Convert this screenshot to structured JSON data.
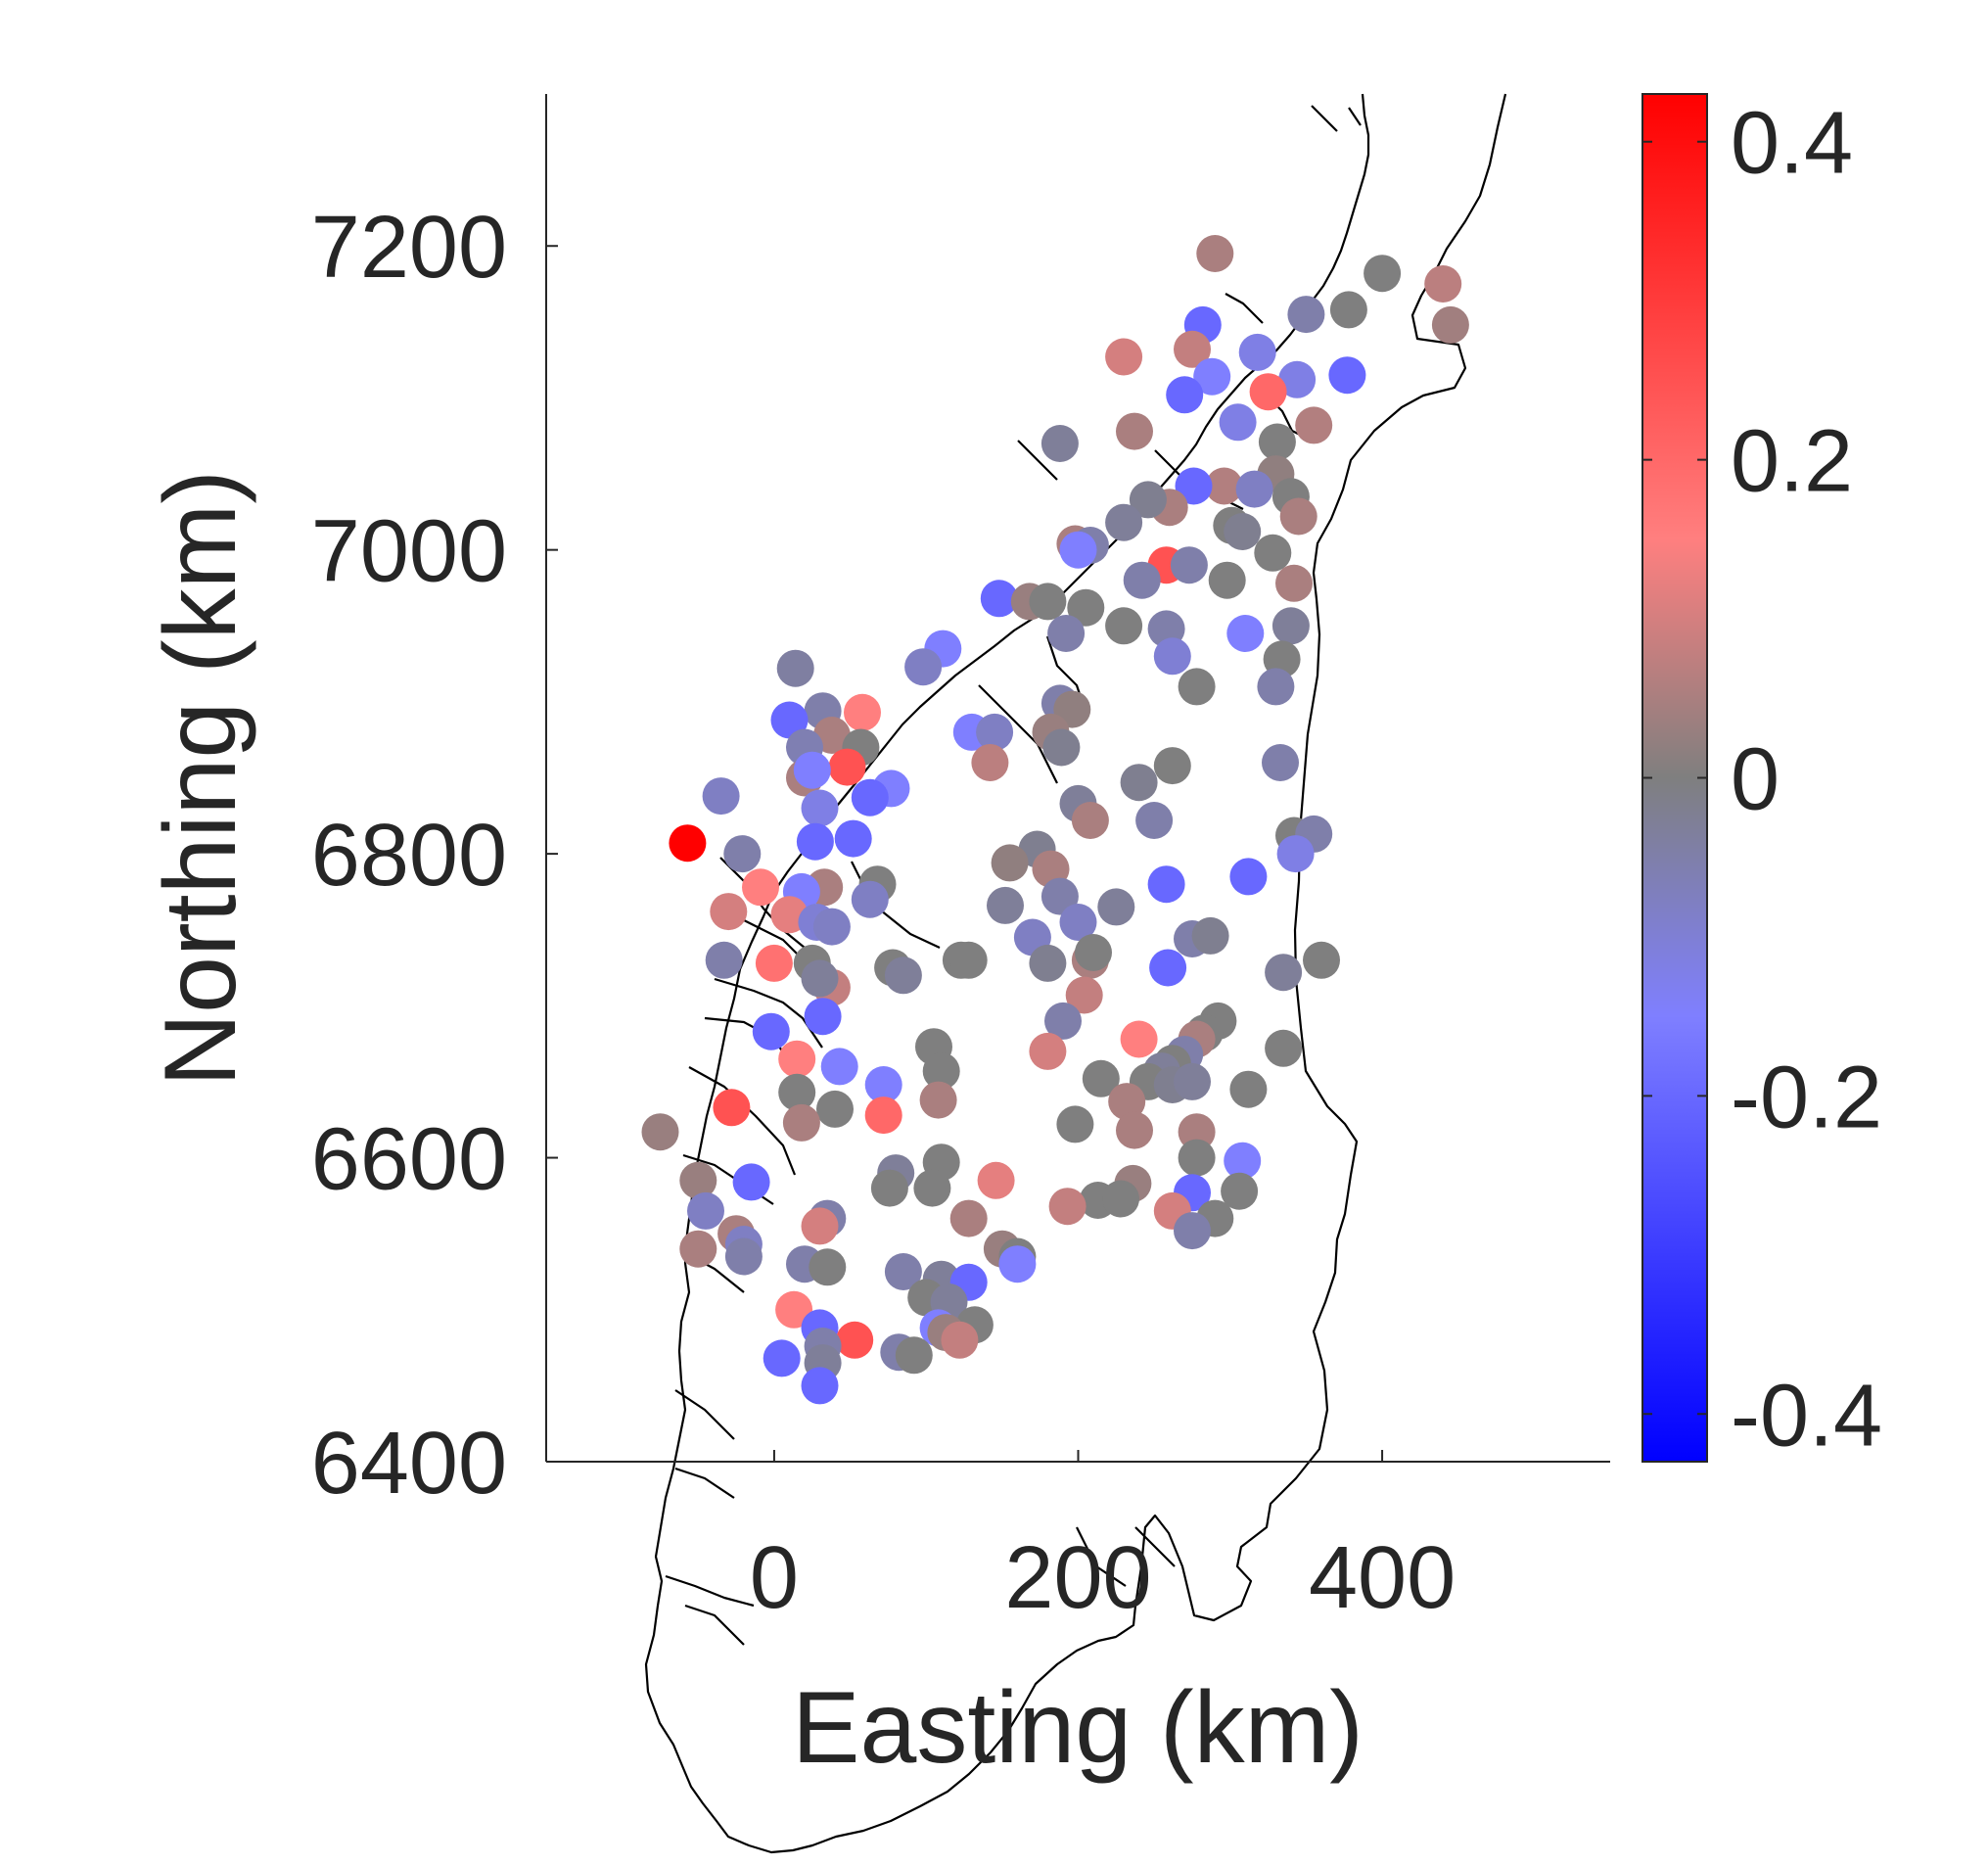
{
  "chart_data": {
    "type": "scatter",
    "xlabel": "Easting (km)",
    "ylabel": "Northing (km)",
    "xlim": [
      -150,
      550
    ],
    "ylim": [
      6400,
      7300
    ],
    "xticks": [
      0,
      200,
      400
    ],
    "yticks": [
      6400,
      6600,
      6800,
      7000,
      7200
    ],
    "colorbar": {
      "range": [
        -0.43,
        0.43
      ],
      "ticks": [
        -0.4,
        -0.2,
        0,
        0.2,
        0.4
      ],
      "tick_labels": [
        "-0.4",
        "-0.2",
        "0",
        "0.2",
        "0.4"
      ],
      "colormap": [
        {
          "v": -0.43,
          "color": "#0000ff"
        },
        {
          "v": -0.15,
          "color": "#7f7fff"
        },
        {
          "v": 0.0,
          "color": "#7f7f7f"
        },
        {
          "v": 0.15,
          "color": "#ff7f7f"
        },
        {
          "v": 0.43,
          "color": "#ff0000"
        }
      ]
    },
    "grid": false,
    "points": [
      [
        290,
        7195,
        0.05
      ],
      [
        400,
        7182,
        0.0
      ],
      [
        440,
        7175,
        0.07
      ],
      [
        445,
        7148,
        0.04
      ],
      [
        378,
        7158,
        0.0
      ],
      [
        350,
        7155,
        -0.05
      ],
      [
        282,
        7148,
        -0.2
      ],
      [
        230,
        7127,
        0.1
      ],
      [
        275,
        7132,
        0.08
      ],
      [
        318,
        7130,
        -0.12
      ],
      [
        344,
        7112,
        -0.12
      ],
      [
        377,
        7115,
        -0.2
      ],
      [
        288,
        7114,
        -0.15
      ],
      [
        270,
        7102,
        -0.2
      ],
      [
        325,
        7104,
        0.2
      ],
      [
        305,
        7084,
        -0.12
      ],
      [
        355,
        7082,
        0.06
      ],
      [
        237,
        7078,
        0.05
      ],
      [
        188,
        7070,
        -0.03
      ],
      [
        331,
        7071,
        0.0
      ],
      [
        330,
        7050,
        0.02
      ],
      [
        296,
        7042,
        0.06
      ],
      [
        276,
        7042,
        -0.2
      ],
      [
        316,
        7040,
        -0.08
      ],
      [
        340,
        7035,
        0.0
      ],
      [
        260,
        7028,
        0.05
      ],
      [
        246,
        7033,
        -0.02
      ],
      [
        345,
        7022,
        0.05
      ],
      [
        230,
        7018,
        -0.03
      ],
      [
        301,
        7016,
        0.0
      ],
      [
        308,
        7012,
        -0.02
      ],
      [
        198,
        7004,
        0.05
      ],
      [
        208,
        7003,
        -0.05
      ],
      [
        200,
        7000,
        -0.15
      ],
      [
        328,
        6998,
        0.0
      ],
      [
        258,
        6990,
        0.25
      ],
      [
        273,
        6990,
        -0.05
      ],
      [
        242,
        6980,
        -0.05
      ],
      [
        298,
        6980,
        0.0
      ],
      [
        342,
        6978,
        0.05
      ],
      [
        148,
        6968,
        -0.2
      ],
      [
        168,
        6966,
        0.03
      ],
      [
        180,
        6966,
        0.0
      ],
      [
        205,
        6962,
        0.0
      ],
      [
        230,
        6950,
        0.0
      ],
      [
        340,
        6950,
        -0.03
      ],
      [
        258,
        6948,
        -0.05
      ],
      [
        192,
        6945,
        -0.05
      ],
      [
        310,
        6945,
        -0.15
      ],
      [
        111,
        6935,
        -0.15
      ],
      [
        98,
        6923,
        -0.08
      ],
      [
        14,
        6922,
        -0.04
      ],
      [
        262,
        6930,
        -0.1
      ],
      [
        334,
        6928,
        0.0
      ],
      [
        278,
        6910,
        0.0
      ],
      [
        330,
        6910,
        -0.05
      ],
      [
        188,
        6899,
        -0.05
      ],
      [
        196,
        6895,
        0.02
      ],
      [
        32,
        6894,
        -0.05
      ],
      [
        58,
        6893,
        0.15
      ],
      [
        10,
        6888,
        -0.2
      ],
      [
        130,
        6880,
        -0.15
      ],
      [
        145,
        6880,
        -0.08
      ],
      [
        182,
        6880,
        0.03
      ],
      [
        38,
        6878,
        0.05
      ],
      [
        20,
        6870,
        -0.06
      ],
      [
        57,
        6870,
        0.0
      ],
      [
        189,
        6870,
        -0.02
      ],
      [
        262,
        6858,
        0.0
      ],
      [
        333,
        6860,
        -0.05
      ],
      [
        142,
        6860,
        0.07
      ],
      [
        48,
        6857,
        0.25
      ],
      [
        20,
        6850,
        0.05
      ],
      [
        25,
        6855,
        -0.15
      ],
      [
        240,
        6847,
        -0.02
      ],
      [
        77,
        6843,
        -0.15
      ],
      [
        63,
        6837,
        -0.2
      ],
      [
        -35,
        6838,
        -0.08
      ],
      [
        200,
        6833,
        -0.03
      ],
      [
        30,
        6830,
        -0.12
      ],
      [
        208,
        6822,
        0.05
      ],
      [
        250,
        6822,
        -0.05
      ],
      [
        342,
        6812,
        0.0
      ],
      [
        355,
        6813,
        -0.05
      ],
      [
        -57,
        6807,
        0.43
      ],
      [
        27,
        6808,
        -0.2
      ],
      [
        52,
        6810,
        -0.2
      ],
      [
        343,
        6800,
        -0.12
      ],
      [
        -21,
        6800,
        -0.05
      ],
      [
        173,
        6803,
        -0.02
      ],
      [
        155,
        6794,
        0.02
      ],
      [
        182,
        6790,
        0.05
      ],
      [
        258,
        6780,
        -0.2
      ],
      [
        312,
        6785,
        -0.2
      ],
      [
        -9,
        6778,
        0.15
      ],
      [
        33,
        6778,
        0.05
      ],
      [
        68,
        6780,
        0.0
      ],
      [
        18,
        6775,
        -0.15
      ],
      [
        188,
        6772,
        -0.05
      ],
      [
        63,
        6770,
        -0.08
      ],
      [
        152,
        6766,
        -0.03
      ],
      [
        225,
        6765,
        -0.03
      ],
      [
        -30,
        6762,
        0.1
      ],
      [
        10,
        6760,
        0.12
      ],
      [
        28,
        6755,
        -0.1
      ],
      [
        38,
        6752,
        -0.08
      ],
      [
        200,
        6755,
        -0.08
      ],
      [
        170,
        6745,
        -0.08
      ],
      [
        275,
        6744,
        -0.05
      ],
      [
        287,
        6746,
        -0.02
      ],
      [
        -33,
        6730,
        -0.05
      ],
      [
        123,
        6730,
        0.0
      ],
      [
        128,
        6730,
        0.0
      ],
      [
        180,
        6728,
        -0.02
      ],
      [
        208,
        6730,
        0.05
      ],
      [
        210,
        6735,
        0.0
      ],
      [
        360,
        6730,
        0.0
      ],
      [
        0,
        6728,
        0.18
      ],
      [
        25,
        6728,
        0.0
      ],
      [
        78,
        6725,
        0.0
      ],
      [
        259,
        6725,
        -0.2
      ],
      [
        335,
        6722,
        -0.03
      ],
      [
        85,
        6720,
        -0.03
      ],
      [
        38,
        6712,
        0.08
      ],
      [
        30,
        6718,
        -0.03
      ],
      [
        204,
        6707,
        0.08
      ],
      [
        32,
        6693,
        -0.2
      ],
      [
        190,
        6690,
        -0.05
      ],
      [
        292,
        6690,
        0.0
      ],
      [
        -2,
        6683,
        -0.2
      ],
      [
        283,
        6682,
        0.0
      ],
      [
        240,
        6678,
        0.15
      ],
      [
        278,
        6678,
        0.05
      ],
      [
        105,
        6673,
        0.0
      ],
      [
        180,
        6670,
        0.1
      ],
      [
        335,
        6672,
        0.0
      ],
      [
        270,
        6668,
        -0.05
      ],
      [
        262,
        6662,
        0.0
      ],
      [
        255,
        6657,
        -0.03
      ],
      [
        15,
        6665,
        0.15
      ],
      [
        43,
        6660,
        -0.15
      ],
      [
        110,
        6657,
        0.0
      ],
      [
        215,
        6652,
        0.0
      ],
      [
        72,
        6648,
        -0.15
      ],
      [
        246,
        6650,
        0.0
      ],
      [
        262,
        6648,
        -0.02
      ],
      [
        275,
        6650,
        -0.03
      ],
      [
        312,
        6645,
        0.0
      ],
      [
        15,
        6643,
        0.0
      ],
      [
        108,
        6638,
        0.05
      ],
      [
        232,
        6637,
        0.05
      ],
      [
        -28,
        6633,
        0.25
      ],
      [
        40,
        6632,
        0.0
      ],
      [
        72,
        6628,
        0.2
      ],
      [
        18,
        6623,
        0.05
      ],
      [
        237,
        6618,
        0.05
      ],
      [
        278,
        6617,
        0.05
      ],
      [
        198,
        6622,
        0.0
      ],
      [
        -75,
        6617,
        0.03
      ],
      [
        278,
        6600,
        0.0
      ],
      [
        308,
        6598,
        -0.15
      ],
      [
        110,
        6597,
        0.0
      ],
      [
        80,
        6590,
        -0.03
      ],
      [
        146,
        6585,
        0.12
      ],
      [
        236,
        6583,
        0.03
      ],
      [
        -50,
        6585,
        0.03
      ],
      [
        -15,
        6584,
        -0.2
      ],
      [
        76,
        6580,
        0.0
      ],
      [
        104,
        6580,
        0.0
      ],
      [
        275,
        6577,
        -0.2
      ],
      [
        306,
        6578,
        0.0
      ],
      [
        213,
        6572,
        0.0
      ],
      [
        228,
        6573,
        0.0
      ],
      [
        193,
        6568,
        0.08
      ],
      [
        -45,
        6565,
        -0.08
      ],
      [
        262,
        6565,
        0.1
      ],
      [
        35,
        6560,
        -0.05
      ],
      [
        128,
        6560,
        0.05
      ],
      [
        290,
        6560,
        0.0
      ],
      [
        30,
        6555,
        0.1
      ],
      [
        -25,
        6550,
        0.05
      ],
      [
        -20,
        6543,
        -0.08
      ],
      [
        275,
        6552,
        -0.05
      ],
      [
        -50,
        6540,
        0.05
      ],
      [
        -20,
        6535,
        -0.05
      ],
      [
        150,
        6540,
        0.03
      ],
      [
        160,
        6535,
        0.0
      ],
      [
        160,
        6530,
        -0.15
      ],
      [
        20,
        6530,
        -0.05
      ],
      [
        35,
        6528,
        0.0
      ],
      [
        85,
        6525,
        -0.05
      ],
      [
        110,
        6520,
        -0.03
      ],
      [
        128,
        6518,
        -0.2
      ],
      [
        100,
        6508,
        0.0
      ],
      [
        115,
        6505,
        -0.03
      ],
      [
        13,
        6500,
        0.15
      ],
      [
        132,
        6490,
        0.0
      ],
      [
        30,
        6488,
        -0.2
      ],
      [
        108,
        6488,
        -0.15
      ],
      [
        113,
        6485,
        0.03
      ],
      [
        122,
        6480,
        0.08
      ],
      [
        53,
        6480,
        0.25
      ],
      [
        32,
        6476,
        -0.05
      ],
      [
        82,
        6472,
        -0.05
      ],
      [
        92,
        6470,
        0.0
      ],
      [
        5,
        6468,
        -0.2
      ],
      [
        32,
        6465,
        -0.03
      ],
      [
        30,
        6450,
        -0.2
      ]
    ]
  }
}
